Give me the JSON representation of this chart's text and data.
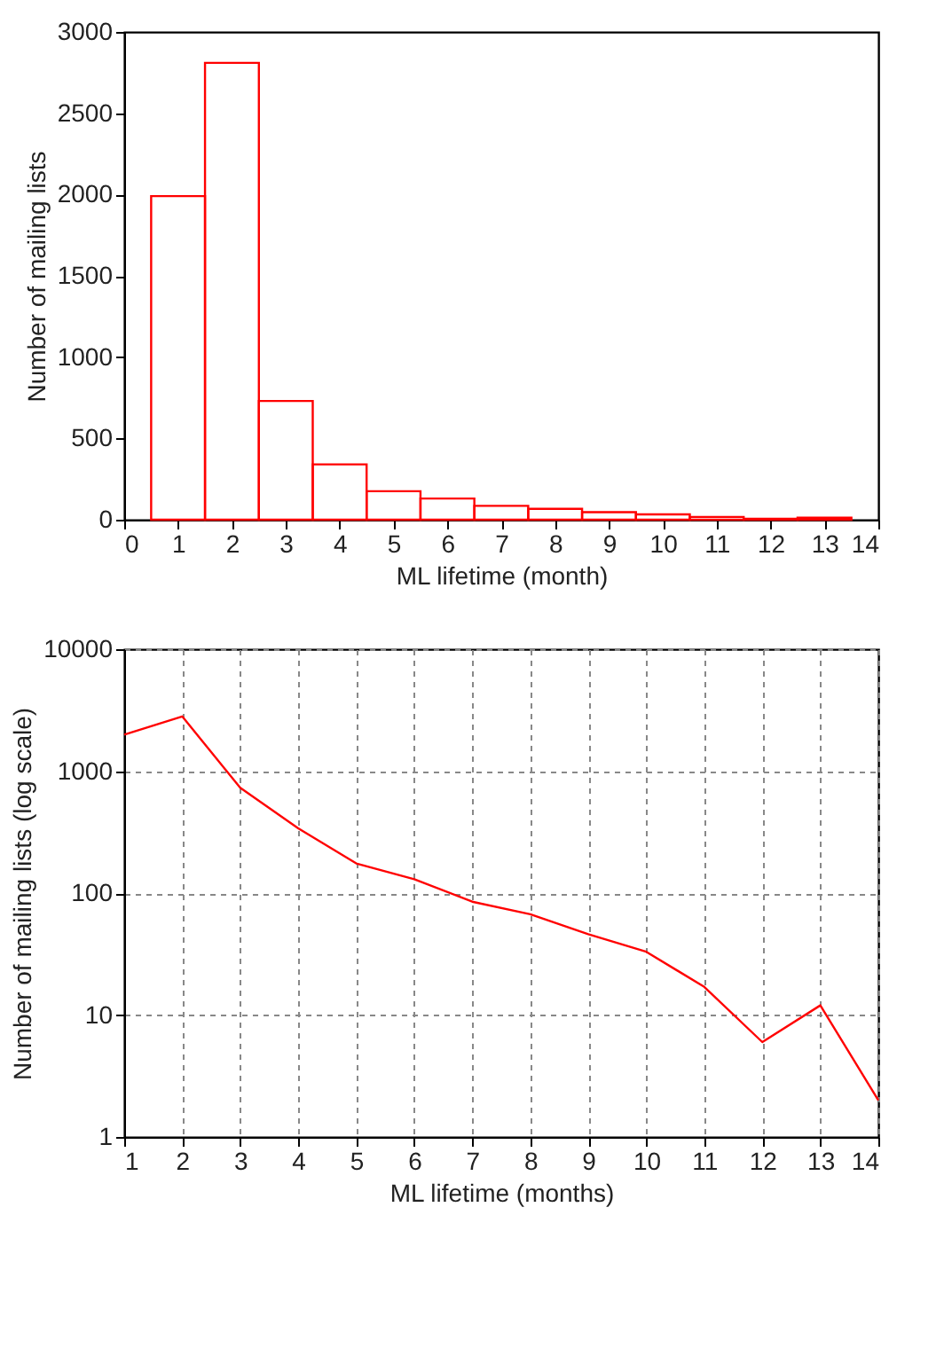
{
  "chart_data": [
    {
      "type": "histogram",
      "xlabel": "ML lifetime (month)",
      "ylabel": "Number of mailing lists",
      "bins": [
        0.5,
        1.5,
        2.5,
        3.5,
        4.5,
        5.5,
        6.5,
        7.5,
        8.5,
        9.5,
        10.5,
        11.5,
        12.5,
        13.5
      ],
      "values": [
        1990,
        2810,
        730,
        340,
        175,
        130,
        85,
        67,
        46,
        33,
        17,
        6,
        12
      ],
      "color": "#ff0000",
      "xlim": [
        0,
        14
      ],
      "xticks": [
        0,
        1,
        2,
        3,
        4,
        5,
        6,
        7,
        8,
        9,
        10,
        11,
        12,
        13,
        14
      ],
      "ylim": [
        0,
        3000
      ],
      "yticks": [
        0,
        500,
        1000,
        1500,
        2000,
        2500,
        3000
      ],
      "grid": false
    },
    {
      "type": "line",
      "xlabel": "ML lifetime (months)",
      "ylabel": "Number of mailing lists (log scale)",
      "x": [
        1,
        2,
        3,
        4,
        5,
        6,
        7,
        8,
        9,
        10,
        11,
        12,
        13,
        14
      ],
      "values": [
        1990,
        2810,
        730,
        340,
        175,
        130,
        85,
        67,
        46,
        33,
        17,
        6,
        12,
        2
      ],
      "color": "#ff0000",
      "log": true,
      "xlim": [
        1,
        14
      ],
      "xticks": [
        1,
        2,
        3,
        4,
        5,
        6,
        7,
        8,
        9,
        10,
        11,
        12,
        13,
        14
      ],
      "ylim": [
        1,
        10000
      ],
      "yticks": [
        1,
        10,
        100,
        1000,
        10000
      ],
      "grid": true,
      "line_style": "solid",
      "marker": "none"
    }
  ]
}
